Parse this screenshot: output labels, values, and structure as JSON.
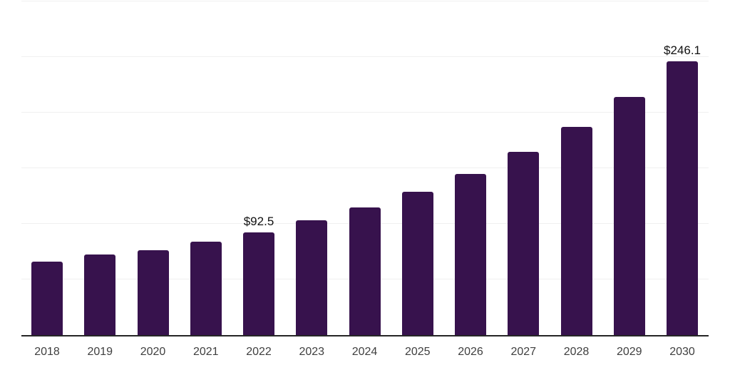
{
  "chart_data": {
    "type": "bar",
    "title": "",
    "xlabel": "",
    "ylabel": "",
    "categories": [
      "2018",
      "2019",
      "2020",
      "2021",
      "2022",
      "2023",
      "2024",
      "2025",
      "2026",
      "2027",
      "2028",
      "2029",
      "2030"
    ],
    "values": [
      65.8,
      72.6,
      76.2,
      83.7,
      92.5,
      103.0,
      114.5,
      129.0,
      145.0,
      164.5,
      187.0,
      214.0,
      246.1
    ],
    "data_labels": [
      "",
      "",
      "",
      "",
      "$92.5",
      "",
      "",
      "",
      "",
      "",
      "",
      "",
      "$246.1"
    ],
    "ylim": [
      0,
      300
    ],
    "gridline_step": 50,
    "grid": true,
    "legend": false,
    "y_axis_tick_labels_visible": false
  },
  "colors": {
    "bar": "#37124d",
    "gridline": "#f0f0f0",
    "axis_line": "#262626",
    "tick_label": "#3f3f3f",
    "data_label": "#111111",
    "background": "#ffffff"
  }
}
